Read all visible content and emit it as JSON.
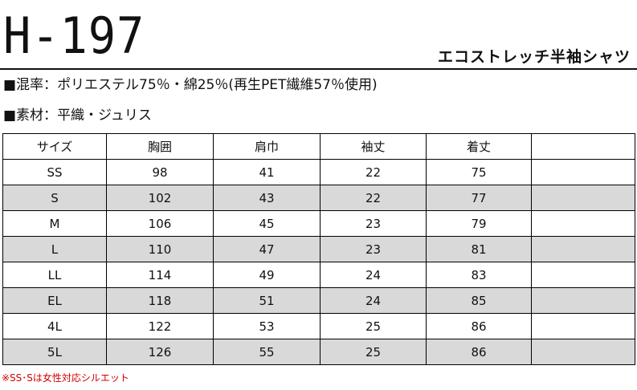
{
  "header": {
    "model": "H-197",
    "product_name": "エコストレッチ半袖シャツ"
  },
  "specs": {
    "blend_label": "■混率：",
    "blend_value": "ポリエステル75％・綿25％(再生PET繊維57％使用)",
    "material_label": "■素材：",
    "material_value": "平織・ジュリス"
  },
  "size_table": {
    "columns": [
      "サイズ",
      "胸囲",
      "肩巾",
      "袖丈",
      "着丈",
      ""
    ],
    "rows": [
      [
        "SS",
        "98",
        "41",
        "22",
        "75",
        ""
      ],
      [
        "S",
        "102",
        "43",
        "22",
        "77",
        ""
      ],
      [
        "M",
        "106",
        "45",
        "23",
        "79",
        ""
      ],
      [
        "L",
        "110",
        "47",
        "23",
        "81",
        ""
      ],
      [
        "LL",
        "114",
        "49",
        "24",
        "83",
        ""
      ],
      [
        "EL",
        "118",
        "51",
        "24",
        "85",
        ""
      ],
      [
        "4L",
        "122",
        "53",
        "25",
        "86",
        ""
      ],
      [
        "5L",
        "126",
        "55",
        "25",
        "86",
        ""
      ]
    ],
    "shaded_rows": [
      1,
      3,
      5,
      7
    ],
    "shade_color": "#d9d9d9"
  },
  "footnote": "※SS･Sは女性対応シルエット",
  "colors": {
    "text": "#111111",
    "note": "#d10000",
    "rule": "#111111"
  }
}
